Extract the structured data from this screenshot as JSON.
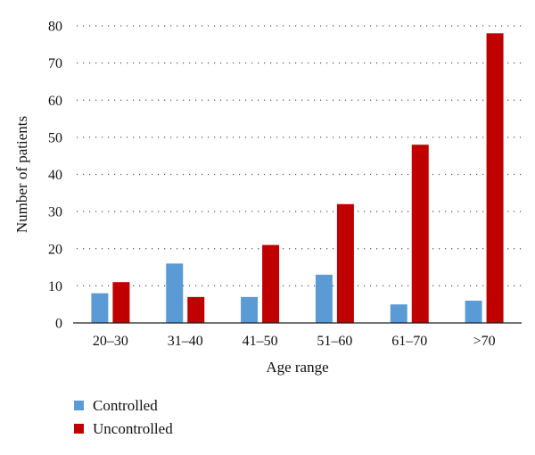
{
  "chart_data": {
    "type": "bar",
    "categories": [
      "20–30",
      "31–40",
      "41–50",
      "51–60",
      "61–70",
      ">70"
    ],
    "series": [
      {
        "name": "Controlled",
        "values": [
          8,
          16,
          7,
          13,
          5,
          6
        ],
        "color": "#5b9bd5"
      },
      {
        "name": "Uncontrolled",
        "values": [
          11,
          7,
          21,
          32,
          48,
          78
        ],
        "color": "#c00000"
      }
    ],
    "title": "",
    "xlabel": "Age range",
    "ylabel": "Number of patients",
    "ylim": [
      0,
      80
    ],
    "yticks": [
      0,
      10,
      20,
      30,
      40,
      50,
      60,
      70,
      80
    ],
    "grid": true,
    "legend_position": "bottom-left"
  }
}
